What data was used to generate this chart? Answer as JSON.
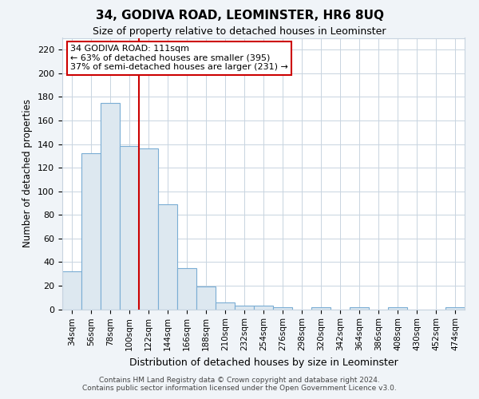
{
  "title": "34, GODIVA ROAD, LEOMINSTER, HR6 8UQ",
  "subtitle": "Size of property relative to detached houses in Leominster",
  "xlabel": "Distribution of detached houses by size in Leominster",
  "ylabel": "Number of detached properties",
  "bar_labels": [
    "34sqm",
    "56sqm",
    "78sqm",
    "100sqm",
    "122sqm",
    "144sqm",
    "166sqm",
    "188sqm",
    "210sqm",
    "232sqm",
    "254sqm",
    "276sqm",
    "298sqm",
    "320sqm",
    "342sqm",
    "364sqm",
    "386sqm",
    "408sqm",
    "430sqm",
    "452sqm",
    "474sqm"
  ],
  "bar_heights": [
    32,
    132,
    175,
    138,
    136,
    89,
    35,
    19,
    6,
    3,
    3,
    2,
    0,
    2,
    0,
    2,
    0,
    2,
    0,
    0,
    2
  ],
  "bar_color": "#dde8f0",
  "bar_edge_color": "#7aadd4",
  "ylim": [
    0,
    230
  ],
  "yticks": [
    0,
    20,
    40,
    60,
    80,
    100,
    120,
    140,
    160,
    180,
    200,
    220
  ],
  "red_line_x": 3.5,
  "annotation_text": "34 GODIVA ROAD: 111sqm\n← 63% of detached houses are smaller (395)\n37% of semi-detached houses are larger (231) →",
  "annotation_box_color": "#ffffff",
  "annotation_box_edge": "#cc0000",
  "footer_line1": "Contains HM Land Registry data © Crown copyright and database right 2024.",
  "footer_line2": "Contains public sector information licensed under the Open Government Licence v3.0.",
  "background_color": "#f0f4f8",
  "plot_background": "#ffffff",
  "grid_color": "#c8d4e0"
}
